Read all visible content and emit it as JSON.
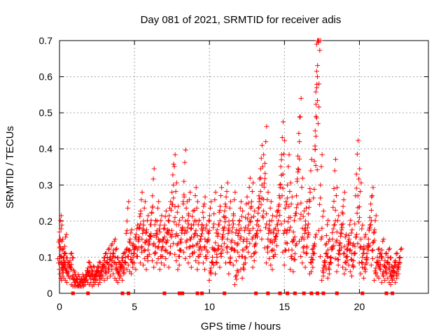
{
  "chart_data": {
    "type": "scatter",
    "title": "Day 081 of 2021, SRMTID for receiver adis",
    "xlabel": "GPS time / hours",
    "ylabel": "SRMTID / TECUs",
    "xlim": [
      0,
      24.6
    ],
    "ylim": [
      0,
      0.7
    ],
    "xticks": [
      0,
      5,
      10,
      15,
      20
    ],
    "xtick_labels": [
      "0",
      "5",
      "10",
      "15",
      "20"
    ],
    "yticks": [
      0,
      0.1,
      0.2,
      0.3,
      0.4,
      0.5,
      0.6,
      0.7
    ],
    "ytick_labels": [
      "0",
      "0.1",
      "0.2",
      "0.3",
      "0.4",
      "0.5",
      "0.6",
      "0.7"
    ],
    "grid": true,
    "marker": "+",
    "color": "#ff0000",
    "series": [
      {
        "name": "SRMTID",
        "x": [
          0.0,
          0.05,
          0.1,
          0.15,
          0.2,
          0.25,
          0.3,
          0.35,
          0.4,
          0.5,
          0.6,
          0.7,
          0.8,
          0.9,
          1.0,
          1.1,
          1.2,
          1.3,
          1.4,
          1.5,
          1.6,
          1.7,
          1.8,
          1.9,
          2.0,
          2.1,
          2.2,
          2.3,
          2.4,
          2.5,
          2.6,
          2.7,
          2.8,
          2.9,
          3.0,
          3.1,
          3.2,
          3.3,
          3.4,
          3.5,
          3.6,
          3.7,
          3.8,
          3.9,
          4.0,
          4.1,
          4.2,
          4.3,
          4.4,
          4.5,
          4.6,
          4.7,
          4.8,
          4.9,
          5.0,
          5.1,
          5.2,
          5.3,
          5.4,
          5.5,
          5.6,
          5.7,
          5.8,
          5.9,
          6.0,
          6.1,
          6.2,
          6.3,
          6.4,
          6.5,
          6.6,
          6.7,
          6.8,
          6.9,
          7.0,
          7.1,
          7.2,
          7.3,
          7.4,
          7.5,
          7.6,
          7.7,
          7.8,
          7.9,
          8.0,
          8.1,
          8.2,
          8.3,
          8.4,
          8.5,
          8.6,
          8.7,
          8.8,
          8.9,
          9.0,
          9.1,
          9.2,
          9.3,
          9.4,
          9.5,
          9.6,
          9.7,
          9.8,
          9.9,
          10.0,
          10.1,
          10.2,
          10.3,
          10.4,
          10.5,
          10.6,
          10.7,
          10.8,
          10.9,
          11.0,
          11.1,
          11.2,
          11.3,
          11.4,
          11.5,
          11.6,
          11.7,
          11.8,
          11.9,
          12.0,
          12.1,
          12.2,
          12.3,
          12.4,
          12.5,
          12.6,
          12.7,
          12.8,
          12.9,
          13.0,
          13.1,
          13.2,
          13.3,
          13.4,
          13.5,
          13.6,
          13.7,
          13.8,
          13.9,
          14.0,
          14.1,
          14.2,
          14.3,
          14.4,
          14.5,
          14.6,
          14.7,
          14.8,
          14.9,
          15.0,
          15.1,
          15.2,
          15.3,
          15.4,
          15.5,
          15.6,
          15.7,
          15.8,
          15.9,
          16.0,
          16.1,
          16.2,
          16.3,
          16.4,
          16.5,
          16.6,
          16.7,
          16.8,
          16.9,
          17.0,
          17.05,
          17.1,
          17.15,
          17.2,
          17.3,
          17.4,
          17.5,
          17.6,
          17.7,
          17.8,
          17.9,
          18.0,
          18.1,
          18.2,
          18.3,
          18.4,
          18.5,
          18.6,
          18.7,
          18.8,
          18.9,
          19.0,
          19.1,
          19.2,
          19.3,
          19.4,
          19.5,
          19.6,
          19.7,
          19.8,
          19.9,
          20.0,
          20.1,
          20.2,
          20.3,
          20.4,
          20.5,
          20.6,
          20.7,
          20.8,
          20.9,
          21.0,
          21.1,
          21.2,
          21.3,
          21.4,
          21.5,
          21.6,
          21.7,
          21.8,
          21.9,
          22.0,
          22.1,
          22.2,
          22.3,
          22.4,
          22.5,
          22.6,
          22.7
        ],
        "y": [
          0.17,
          0.15,
          0.12,
          0.1,
          0.08,
          0.07,
          0.09,
          0.13,
          0.08,
          0.07,
          0.06,
          0.09,
          0.08,
          0.05,
          0.04,
          0.03,
          0.04,
          0.02,
          0.03,
          0.04,
          0.03,
          0.04,
          0.05,
          0.07,
          0.06,
          0.05,
          0.06,
          0.04,
          0.05,
          0.06,
          0.07,
          0.05,
          0.06,
          0.08,
          0.09,
          0.07,
          0.1,
          0.08,
          0.11,
          0.09,
          0.12,
          0.1,
          0.08,
          0.07,
          0.06,
          0.08,
          0.09,
          0.07,
          0.1,
          0.2,
          0.12,
          0.14,
          0.11,
          0.1,
          0.13,
          0.15,
          0.12,
          0.18,
          0.22,
          0.15,
          0.2,
          0.14,
          0.17,
          0.12,
          0.16,
          0.19,
          0.27,
          0.16,
          0.13,
          0.2,
          0.15,
          0.17,
          0.12,
          0.15,
          0.18,
          0.14,
          0.17,
          0.2,
          0.13,
          0.28,
          0.3,
          0.24,
          0.19,
          0.16,
          0.12,
          0.14,
          0.21,
          0.31,
          0.2,
          0.17,
          0.22,
          0.15,
          0.18,
          0.13,
          0.23,
          0.2,
          0.16,
          0.12,
          0.15,
          0.19,
          0.21,
          0.15,
          0.12,
          0.17,
          0.2,
          0.07,
          0.1,
          0.22,
          0.14,
          0.1,
          0.19,
          0.23,
          0.13,
          0.18,
          0.21,
          0.24,
          0.15,
          0.2,
          0.1,
          0.17,
          0.22,
          0.14,
          0.05,
          0.16,
          0.2,
          0.18,
          0.12,
          0.08,
          0.21,
          0.15,
          0.25,
          0.2,
          0.24,
          0.18,
          0.13,
          0.16,
          0.2,
          0.27,
          0.32,
          0.3,
          0.26,
          0.36,
          0.22,
          0.15,
          0.2,
          0.17,
          0.14,
          0.12,
          0.18,
          0.19,
          0.23,
          0.3,
          0.37,
          0.33,
          0.2,
          0.14,
          0.3,
          0.24,
          0.21,
          0.12,
          0.17,
          0.11,
          0.27,
          0.38,
          0.42,
          0.25,
          0.18,
          0.15,
          0.2,
          0.13,
          0.22,
          0.29,
          0.1,
          0.11,
          0.13,
          0.45,
          0.49,
          0.69,
          0.6,
          0.58,
          0.3,
          0.18,
          0.07,
          0.09,
          0.16,
          0.12,
          0.08,
          0.1,
          0.15,
          0.29,
          0.23,
          0.17,
          0.11,
          0.14,
          0.19,
          0.22,
          0.13,
          0.1,
          0.12,
          0.16,
          0.14,
          0.11,
          0.09,
          0.13,
          0.33,
          0.27,
          0.24,
          0.15,
          0.1,
          0.13,
          0.08,
          0.11,
          0.15,
          0.21,
          0.23,
          0.14,
          0.17,
          0.07,
          0.1,
          0.09,
          0.08,
          0.12,
          0.06,
          0.09,
          0.07,
          0.1,
          0.08,
          0.06,
          0.05,
          0.07,
          0.09,
          0.06,
          0.08,
          0.1
        ],
        "zero_x": [
          0.9,
          1.9,
          4.2,
          4.6,
          7.0,
          8.0,
          8.2,
          9.2,
          9.5,
          11.0,
          13.1,
          13.9,
          14.7,
          15.2,
          15.7,
          16.3,
          16.8,
          17.2,
          17.6,
          18.5,
          20.2,
          21.8,
          22.2
        ]
      }
    ]
  }
}
